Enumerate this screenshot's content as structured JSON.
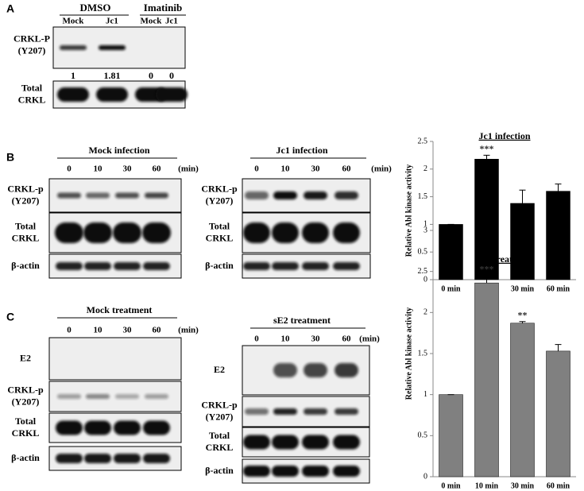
{
  "panels": {
    "A": {
      "label": "A",
      "groups": [
        "DMSO",
        "Imatinib"
      ],
      "lanes": [
        "Mock",
        "Jc1",
        "Mock",
        "Jc1"
      ],
      "rows": [
        {
          "lines": [
            "CRKL-P",
            "(Y207)"
          ]
        },
        {
          "lines": [
            "Total",
            "CRKL"
          ]
        }
      ],
      "quantification": [
        1,
        1.81,
        0,
        0
      ]
    },
    "B": {
      "label": "B",
      "blots": [
        {
          "title": "Mock infection",
          "lanes": [
            "0",
            "10",
            "30",
            "60"
          ],
          "unit": "(min)",
          "rows": [
            {
              "lines": [
                "CRKL-p",
                "(Y207)"
              ]
            },
            {
              "lines": [
                "Total",
                "CRKL"
              ]
            },
            {
              "lines": [
                "β-actin"
              ]
            }
          ]
        },
        {
          "title": "Jc1 infection",
          "lanes": [
            "0",
            "10",
            "30",
            "60"
          ],
          "unit": "(min)",
          "rows": [
            {
              "lines": [
                "CRKL-p",
                "(Y207)"
              ]
            },
            {
              "lines": [
                "Total",
                "CRKL"
              ]
            },
            {
              "lines": [
                "β-actin"
              ]
            }
          ]
        }
      ]
    },
    "C": {
      "label": "C",
      "blots": [
        {
          "title": "Mock treatment",
          "lanes": [
            "0",
            "10",
            "30",
            "60"
          ],
          "unit": "(min)",
          "rows": [
            {
              "lines": [
                "E2"
              ]
            },
            {
              "lines": [
                "CRKL-p",
                "(Y207)"
              ]
            },
            {
              "lines": [
                "Total",
                "CRKL"
              ]
            },
            {
              "lines": [
                "β-actin"
              ]
            }
          ]
        },
        {
          "title": "sE2 treatment",
          "lanes": [
            "0",
            "10",
            "30",
            "60"
          ],
          "unit": "(min)",
          "rows": [
            {
              "lines": [
                "E2"
              ]
            },
            {
              "lines": [
                "CRKL-p",
                "(Y207)"
              ]
            },
            {
              "lines": [
                "Total",
                "CRKL"
              ]
            },
            {
              "lines": [
                "β-actin"
              ]
            }
          ]
        }
      ]
    }
  },
  "chart_data": [
    {
      "type": "bar",
      "title": "Jc1 infection",
      "y_label": "Relative Abl kinase activity",
      "categories": [
        "0 min",
        "10 min",
        "30 min",
        "60 min"
      ],
      "values": [
        1,
        2.18,
        1.38,
        1.6
      ],
      "errors": [
        0,
        0.07,
        0.24,
        0.13
      ],
      "color": "#000000",
      "ylim": [
        0,
        2.5
      ],
      "yticks": [
        0,
        0.5,
        1,
        1.5,
        2,
        2.5
      ],
      "annotations": [
        {
          "text": "***",
          "category": 1
        }
      ]
    },
    {
      "type": "bar",
      "title": "sE2 treatment",
      "y_label": "Relative Abl kinase activity",
      "categories": [
        "0 min",
        "10 min",
        "30 min",
        "60 min"
      ],
      "values": [
        1,
        2.36,
        1.87,
        1.53
      ],
      "errors": [
        0,
        0.09,
        0.02,
        0.08
      ],
      "color": "#808080",
      "ylim": [
        0,
        3
      ],
      "yticks": [
        0,
        0.5,
        1,
        1.5,
        2,
        2.5,
        3
      ],
      "annotations": [
        {
          "text": "***",
          "category": 1
        },
        {
          "text": "**",
          "category": 2
        }
      ]
    }
  ]
}
